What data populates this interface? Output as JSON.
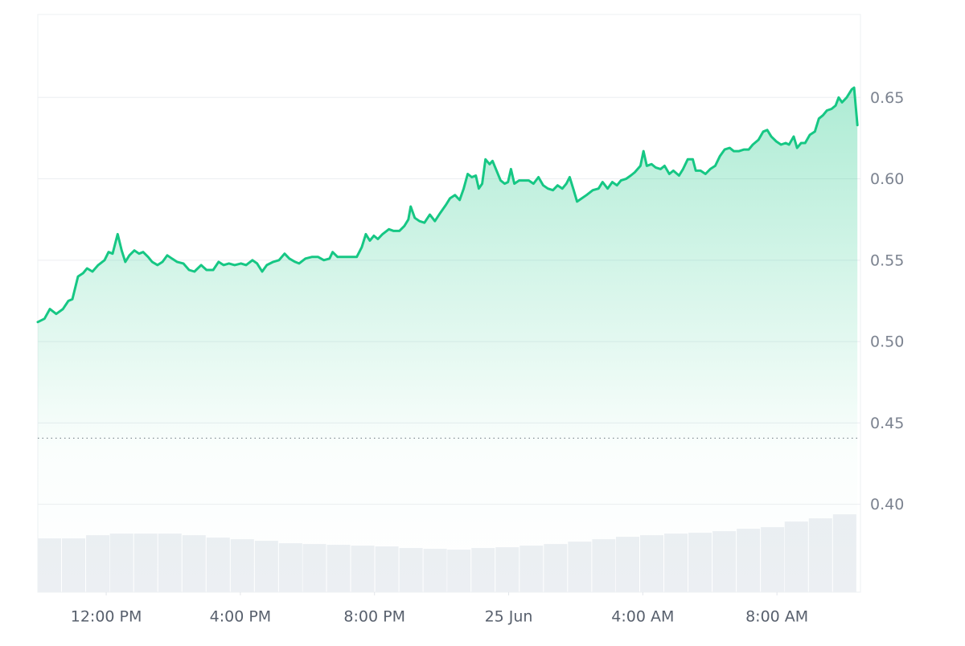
{
  "chart_data": {
    "type": "area",
    "x": [
      9.96,
      10.16,
      10.32,
      10.51,
      10.71,
      10.87,
      10.99,
      11.16,
      11.31,
      11.43,
      11.59,
      11.76,
      11.95,
      12.07,
      12.19,
      12.34,
      12.46,
      12.57,
      12.69,
      12.84,
      12.98,
      13.1,
      13.25,
      13.37,
      13.53,
      13.68,
      13.82,
      13.96,
      14.11,
      14.3,
      14.47,
      14.63,
      14.83,
      14.99,
      15.19,
      15.35,
      15.5,
      15.66,
      15.83,
      16.02,
      16.17,
      16.36,
      16.5,
      16.65,
      16.79,
      16.98,
      17.15,
      17.32,
      17.46,
      17.63,
      17.75,
      17.94,
      18.13,
      18.32,
      18.49,
      18.66,
      18.75,
      18.9,
      19.09,
      19.28,
      19.47,
      19.62,
      19.74,
      19.86,
      19.98,
      20.1,
      20.24,
      20.43,
      20.57,
      20.74,
      20.89,
      21.01,
      21.08,
      21.2,
      21.34,
      21.49,
      21.65,
      21.8,
      21.96,
      22.13,
      22.25,
      22.4,
      22.54,
      22.66,
      22.78,
      22.9,
      23.02,
      23.11,
      23.21,
      23.31,
      23.43,
      23.52,
      23.64,
      23.76,
      23.88,
      23.98,
      24.07,
      24.17,
      24.31,
      24.46,
      24.6,
      24.74,
      24.89,
      25.03,
      25.17,
      25.32,
      25.46,
      25.6,
      25.72,
      25.82,
      25.94,
      26.04,
      26.18,
      26.32,
      26.51,
      26.68,
      26.8,
      26.95,
      27.09,
      27.23,
      27.35,
      27.5,
      27.64,
      27.76,
      27.93,
      28.02,
      28.12,
      28.26,
      28.38,
      28.53,
      28.65,
      28.79,
      28.91,
      29.08,
      29.2,
      29.34,
      29.49,
      29.58,
      29.72,
      29.87,
      30.01,
      30.16,
      30.3,
      30.44,
      30.59,
      30.71,
      30.87,
      31.02,
      31.16,
      31.28,
      31.45,
      31.59,
      31.71,
      31.83,
      31.98,
      32.12,
      32.26,
      32.36,
      32.5,
      32.6,
      32.72,
      32.84,
      32.98,
      33.13,
      33.25,
      33.37,
      33.49,
      33.63,
      33.75,
      33.84,
      33.94,
      34.08,
      34.23,
      34.3,
      34.4
    ],
    "series": [
      {
        "color": "#16c784",
        "values": [
          0.512,
          0.514,
          0.52,
          0.517,
          0.52,
          0.525,
          0.526,
          0.54,
          0.542,
          0.545,
          0.543,
          0.547,
          0.55,
          0.555,
          0.554,
          0.566,
          0.556,
          0.549,
          0.553,
          0.556,
          0.554,
          0.555,
          0.552,
          0.549,
          0.547,
          0.549,
          0.553,
          0.551,
          0.549,
          0.548,
          0.544,
          0.543,
          0.547,
          0.544,
          0.544,
          0.549,
          0.547,
          0.548,
          0.547,
          0.548,
          0.547,
          0.55,
          0.548,
          0.543,
          0.547,
          0.549,
          0.55,
          0.554,
          0.551,
          0.549,
          0.548,
          0.551,
          0.552,
          0.552,
          0.55,
          0.551,
          0.555,
          0.552,
          0.552,
          0.552,
          0.552,
          0.558,
          0.566,
          0.562,
          0.565,
          0.563,
          0.566,
          0.569,
          0.568,
          0.568,
          0.571,
          0.575,
          0.583,
          0.576,
          0.574,
          0.573,
          0.578,
          0.574,
          0.579,
          0.584,
          0.588,
          0.59,
          0.587,
          0.594,
          0.603,
          0.601,
          0.602,
          0.594,
          0.597,
          0.612,
          0.609,
          0.611,
          0.605,
          0.599,
          0.597,
          0.598,
          0.606,
          0.597,
          0.599,
          0.599,
          0.599,
          0.597,
          0.601,
          0.596,
          0.594,
          0.593,
          0.596,
          0.594,
          0.597,
          0.601,
          0.593,
          0.586,
          0.588,
          0.59,
          0.593,
          0.594,
          0.598,
          0.594,
          0.598,
          0.596,
          0.599,
          0.6,
          0.602,
          0.604,
          0.608,
          0.617,
          0.608,
          0.609,
          0.607,
          0.606,
          0.608,
          0.603,
          0.605,
          0.602,
          0.606,
          0.612,
          0.612,
          0.605,
          0.605,
          0.603,
          0.606,
          0.608,
          0.614,
          0.618,
          0.619,
          0.617,
          0.617,
          0.618,
          0.618,
          0.621,
          0.624,
          0.629,
          0.63,
          0.626,
          0.623,
          0.621,
          0.622,
          0.621,
          0.626,
          0.619,
          0.622,
          0.622,
          0.627,
          0.629,
          0.637,
          0.639,
          0.642,
          0.643,
          0.645,
          0.65,
          0.647,
          0.65,
          0.655,
          0.656,
          0.633
        ]
      },
      {
        "type": "bar",
        "axis": "y2",
        "color": "#eceff3",
        "x": [
          10.32,
          11.04,
          11.76,
          12.47,
          13.19,
          13.91,
          14.63,
          15.35,
          16.07,
          16.79,
          17.51,
          18.22,
          18.94,
          19.66,
          20.38,
          21.1,
          21.82,
          22.53,
          23.25,
          23.97,
          24.69,
          25.41,
          26.13,
          26.85,
          27.56,
          28.28,
          29.0,
          29.72,
          30.44,
          31.16,
          31.88,
          32.59,
          33.31,
          34.03
        ],
        "values": [
          67,
          67,
          71,
          73,
          73,
          73,
          71,
          68,
          66,
          64,
          61,
          60,
          59,
          58,
          57,
          55,
          54,
          53,
          55,
          56,
          58,
          60,
          63,
          66,
          69,
          71,
          73,
          74,
          76,
          79,
          81,
          88,
          92,
          97
        ]
      }
    ],
    "xlim": [
      9.96,
      34.49
    ],
    "ylim": [
      0.346,
      0.701
    ],
    "y2lim": [
      0,
      720
    ],
    "xticks": [
      {
        "value": 12,
        "label": "12:00 PM"
      },
      {
        "value": 16,
        "label": "4:00 PM"
      },
      {
        "value": 20,
        "label": "8:00 PM"
      },
      {
        "value": 24,
        "label": "25 Jun"
      },
      {
        "value": 28,
        "label": "4:00 AM"
      },
      {
        "value": 32,
        "label": "8:00 AM"
      }
    ],
    "yticks": [
      {
        "value": 0.4,
        "label": "0.40"
      },
      0.45,
      {
        "value": 0.5,
        "label": "0.50"
      },
      0.55,
      {
        "value": 0.6,
        "label": "0.60"
      },
      0.65
    ],
    "grid": true,
    "reference_line": 0.4406
  }
}
